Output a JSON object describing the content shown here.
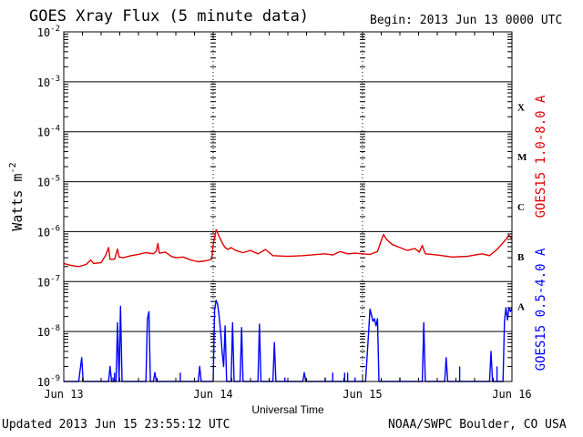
{
  "header": {
    "title": "GOES Xray Flux (5 minute data)",
    "begin": "Begin:  2013 Jun 13 0000 UTC"
  },
  "footer": {
    "updated": "Updated 2013 Jun 15 23:55:12 UTC",
    "credit": "NOAA/SWPC Boulder, CO USA"
  },
  "chart_data": {
    "type": "line",
    "title": "GOES Xray Flux (5 minute data)",
    "xlabel": "Universal Time",
    "ylabel": "Watts m",
    "ylabel_superscript": "-2",
    "y_scale": "log",
    "ylim": [
      1e-09,
      0.01
    ],
    "y_ticks": [
      {
        "value": 1e-09,
        "base": "10",
        "exp": "-9"
      },
      {
        "value": 1e-08,
        "base": "10",
        "exp": "-8"
      },
      {
        "value": 1e-07,
        "base": "10",
        "exp": "-7"
      },
      {
        "value": 1e-06,
        "base": "10",
        "exp": "-6"
      },
      {
        "value": 1e-05,
        "base": "10",
        "exp": "-5"
      },
      {
        "value": 0.0001,
        "base": "10",
        "exp": "-4"
      },
      {
        "value": 0.001,
        "base": "10",
        "exp": "-3"
      },
      {
        "value": 0.01,
        "base": "10",
        "exp": "-2"
      }
    ],
    "x_ticks": [
      {
        "day": 0,
        "label": "Jun 13"
      },
      {
        "day": 1,
        "label": "Jun 14"
      },
      {
        "day": 2,
        "label": "Jun 15"
      },
      {
        "day": 3,
        "label": "Jun 16"
      }
    ],
    "xlim_days": [
      0,
      3
    ],
    "flare_classes": [
      {
        "label": "A",
        "value": 1e-08
      },
      {
        "label": "B",
        "value": 1e-07
      },
      {
        "label": "C",
        "value": 1e-06
      },
      {
        "label": "M",
        "value": 1e-05
      },
      {
        "label": "X",
        "value": 0.0001
      }
    ],
    "grid": "horizontal lines at each decade, dotted vertical at day boundaries",
    "series": [
      {
        "name": "GOES15 1.0-8.0 A",
        "color": "#e00000",
        "points": [
          [
            0.0,
            2.3e-07
          ],
          [
            0.05,
            2.1e-07
          ],
          [
            0.1,
            2e-07
          ],
          [
            0.15,
            2.2e-07
          ],
          [
            0.18,
            2.7e-07
          ],
          [
            0.2,
            2.3e-07
          ],
          [
            0.25,
            2.4e-07
          ],
          [
            0.28,
            3.3e-07
          ],
          [
            0.3,
            4.8e-07
          ],
          [
            0.31,
            2.8e-07
          ],
          [
            0.34,
            2.8e-07
          ],
          [
            0.36,
            4.5e-07
          ],
          [
            0.37,
            3.1e-07
          ],
          [
            0.4,
            3e-07
          ],
          [
            0.45,
            3.3e-07
          ],
          [
            0.5,
            3.5e-07
          ],
          [
            0.55,
            3.8e-07
          ],
          [
            0.6,
            3.6e-07
          ],
          [
            0.62,
            4.1e-07
          ],
          [
            0.63,
            5.8e-07
          ],
          [
            0.64,
            3.7e-07
          ],
          [
            0.68,
            3.9e-07
          ],
          [
            0.72,
            3.2e-07
          ],
          [
            0.75,
            3e-07
          ],
          [
            0.8,
            3.1e-07
          ],
          [
            0.85,
            2.7e-07
          ],
          [
            0.9,
            2.5e-07
          ],
          [
            0.95,
            2.6e-07
          ],
          [
            0.99,
            2.8e-07
          ],
          [
            1.0,
            5.5e-07
          ],
          [
            1.02,
            1.1e-06
          ],
          [
            1.04,
            8e-07
          ],
          [
            1.06,
            6e-07
          ],
          [
            1.08,
            4.8e-07
          ],
          [
            1.1,
            4.4e-07
          ],
          [
            1.12,
            4.8e-07
          ],
          [
            1.15,
            4.2e-07
          ],
          [
            1.2,
            3.8e-07
          ],
          [
            1.25,
            4.2e-07
          ],
          [
            1.3,
            3.6e-07
          ],
          [
            1.35,
            4.4e-07
          ],
          [
            1.4,
            3.3e-07
          ],
          [
            1.5,
            3.2e-07
          ],
          [
            1.6,
            3.3e-07
          ],
          [
            1.7,
            3.5e-07
          ],
          [
            1.75,
            3.6e-07
          ],
          [
            1.8,
            3.4e-07
          ],
          [
            1.85,
            4e-07
          ],
          [
            1.9,
            3.6e-07
          ],
          [
            1.95,
            3.7e-07
          ],
          [
            2.0,
            3.6e-07
          ],
          [
            2.05,
            3.5e-07
          ],
          [
            2.1,
            4e-07
          ],
          [
            2.12,
            6e-07
          ],
          [
            2.14,
            8.8e-07
          ],
          [
            2.16,
            7e-07
          ],
          [
            2.18,
            6.2e-07
          ],
          [
            2.2,
            5.5e-07
          ],
          [
            2.25,
            4.8e-07
          ],
          [
            2.3,
            4.2e-07
          ],
          [
            2.35,
            4.6e-07
          ],
          [
            2.38,
            3.9e-07
          ],
          [
            2.4,
            5.3e-07
          ],
          [
            2.42,
            3.6e-07
          ],
          [
            2.5,
            3.4e-07
          ],
          [
            2.6,
            3.1e-07
          ],
          [
            2.7,
            3.2e-07
          ],
          [
            2.8,
            3.6e-07
          ],
          [
            2.85,
            3.3e-07
          ],
          [
            2.9,
            4.4e-07
          ],
          [
            2.93,
            5.5e-07
          ],
          [
            2.96,
            7e-07
          ],
          [
            2.98,
            8.5e-07
          ],
          [
            3.0,
            7.2e-07
          ]
        ]
      },
      {
        "name": "GOES15 0.5-4.0 A",
        "color": "#0000ff",
        "points": [
          [
            0.0,
            1e-09
          ],
          [
            0.1,
            1e-09
          ],
          [
            0.12,
            3e-09
          ],
          [
            0.13,
            1e-09
          ],
          [
            0.3,
            1e-09
          ],
          [
            0.31,
            2e-09
          ],
          [
            0.32,
            1e-09
          ],
          [
            0.35,
            1e-09
          ],
          [
            0.36,
            1.5e-08
          ],
          [
            0.37,
            1e-09
          ],
          [
            0.38,
            3.2e-08
          ],
          [
            0.39,
            1e-09
          ],
          [
            0.4,
            1e-09
          ],
          [
            0.55,
            1e-09
          ],
          [
            0.56,
            1.8e-08
          ],
          [
            0.57,
            2.5e-08
          ],
          [
            0.58,
            1e-09
          ],
          [
            0.6,
            1e-09
          ],
          [
            0.61,
            1.5e-09
          ],
          [
            0.62,
            1e-09
          ],
          [
            0.9,
            1e-09
          ],
          [
            0.91,
            2e-09
          ],
          [
            0.92,
            1e-09
          ],
          [
            1.0,
            1e-09
          ],
          [
            1.01,
            2.8e-08
          ],
          [
            1.02,
            4.2e-08
          ],
          [
            1.03,
            3.5e-08
          ],
          [
            1.04,
            2e-08
          ],
          [
            1.05,
            1e-08
          ],
          [
            1.06,
            4e-09
          ],
          [
            1.07,
            2e-09
          ],
          [
            1.08,
            1.3e-08
          ],
          [
            1.09,
            1e-09
          ],
          [
            1.12,
            1e-09
          ],
          [
            1.13,
            1.5e-08
          ],
          [
            1.14,
            1e-09
          ],
          [
            1.18,
            1e-09
          ],
          [
            1.19,
            1.2e-08
          ],
          [
            1.2,
            1e-09
          ],
          [
            1.3,
            1e-09
          ],
          [
            1.31,
            1.4e-08
          ],
          [
            1.32,
            1e-09
          ],
          [
            1.4,
            1e-09
          ],
          [
            1.41,
            6e-09
          ],
          [
            1.42,
            1e-09
          ],
          [
            1.6,
            1e-09
          ],
          [
            1.61,
            1.5e-09
          ],
          [
            1.62,
            1e-09
          ],
          [
            2.0,
            1e-09
          ],
          [
            2.02,
            1e-09
          ],
          [
            2.05,
            2.8e-08
          ],
          [
            2.07,
            1.6e-08
          ],
          [
            2.08,
            1.8e-08
          ],
          [
            2.09,
            1.3e-08
          ],
          [
            2.1,
            1.8e-08
          ],
          [
            2.11,
            1e-09
          ],
          [
            2.4,
            1e-09
          ],
          [
            2.41,
            1.5e-08
          ],
          [
            2.42,
            1e-09
          ],
          [
            2.55,
            1e-09
          ],
          [
            2.56,
            3e-09
          ],
          [
            2.57,
            1e-09
          ],
          [
            2.85,
            1e-09
          ],
          [
            2.86,
            4e-09
          ],
          [
            2.87,
            1e-09
          ],
          [
            2.94,
            1e-09
          ],
          [
            2.95,
            1.6e-08
          ],
          [
            2.96,
            3e-08
          ],
          [
            2.97,
            1.7e-08
          ],
          [
            2.98,
            3e-08
          ],
          [
            2.99,
            2.5e-08
          ],
          [
            3.0,
            3e-08
          ]
        ]
      }
    ],
    "xray_spikes_blue": [
      [
        0.33,
        1.2e-09
      ],
      [
        0.34,
        1.5e-09
      ],
      [
        0.78,
        1.5e-09
      ],
      [
        1.48,
        1.2e-09
      ],
      [
        1.75,
        1.2e-09
      ],
      [
        1.8,
        1.5e-09
      ],
      [
        1.88,
        1.5e-09
      ],
      [
        1.9,
        1.5e-09
      ],
      [
        1.95,
        1.2e-09
      ],
      [
        2.25,
        1.2e-09
      ],
      [
        2.65,
        2e-09
      ],
      [
        2.9,
        2e-09
      ]
    ]
  }
}
